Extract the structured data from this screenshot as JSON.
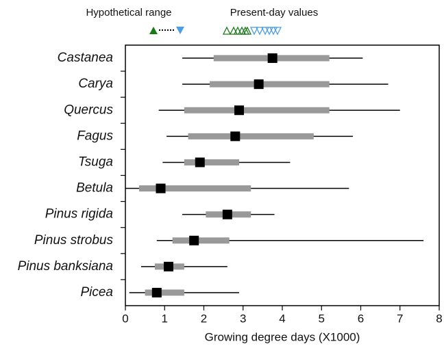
{
  "chart_data": {
    "type": "box",
    "xlabel": "Growing degree days (X1000)",
    "legend_labels": [
      "Hypothetical range",
      "Present-day values"
    ],
    "categories": [
      "Castanea",
      "Carya",
      "Quercus",
      "Fagus",
      "Tsuga",
      "Betula",
      "Pinus rigida",
      "Pinus strobus",
      "Pinus banksiana",
      "Picea"
    ],
    "whisker_low": [
      1.45,
      1.45,
      0.85,
      1.05,
      0.95,
      0,
      1.45,
      0.8,
      0.4,
      0.1
    ],
    "box_low": [
      2.25,
      2.15,
      1.5,
      1.6,
      1.5,
      0.35,
      2.05,
      1.2,
      0.75,
      0.5
    ],
    "median": [
      3.75,
      3.4,
      2.9,
      2.8,
      1.9,
      0.9,
      2.6,
      1.75,
      1.1,
      0.8
    ],
    "box_high": [
      5.2,
      5.2,
      5.2,
      4.8,
      2.9,
      3.2,
      3.2,
      2.65,
      1.5,
      1.5
    ],
    "whisker_high": [
      6.05,
      6.7,
      7.0,
      5.8,
      4.2,
      5.7,
      3.8,
      7.6,
      2.6,
      2.9
    ],
    "line_color": "#000000",
    "box_color": "#999999",
    "median_color": "#000000",
    "xlim": [
      0,
      8
    ],
    "xticks": [
      0,
      1,
      2,
      3,
      4,
      5,
      6,
      7,
      8
    ]
  }
}
